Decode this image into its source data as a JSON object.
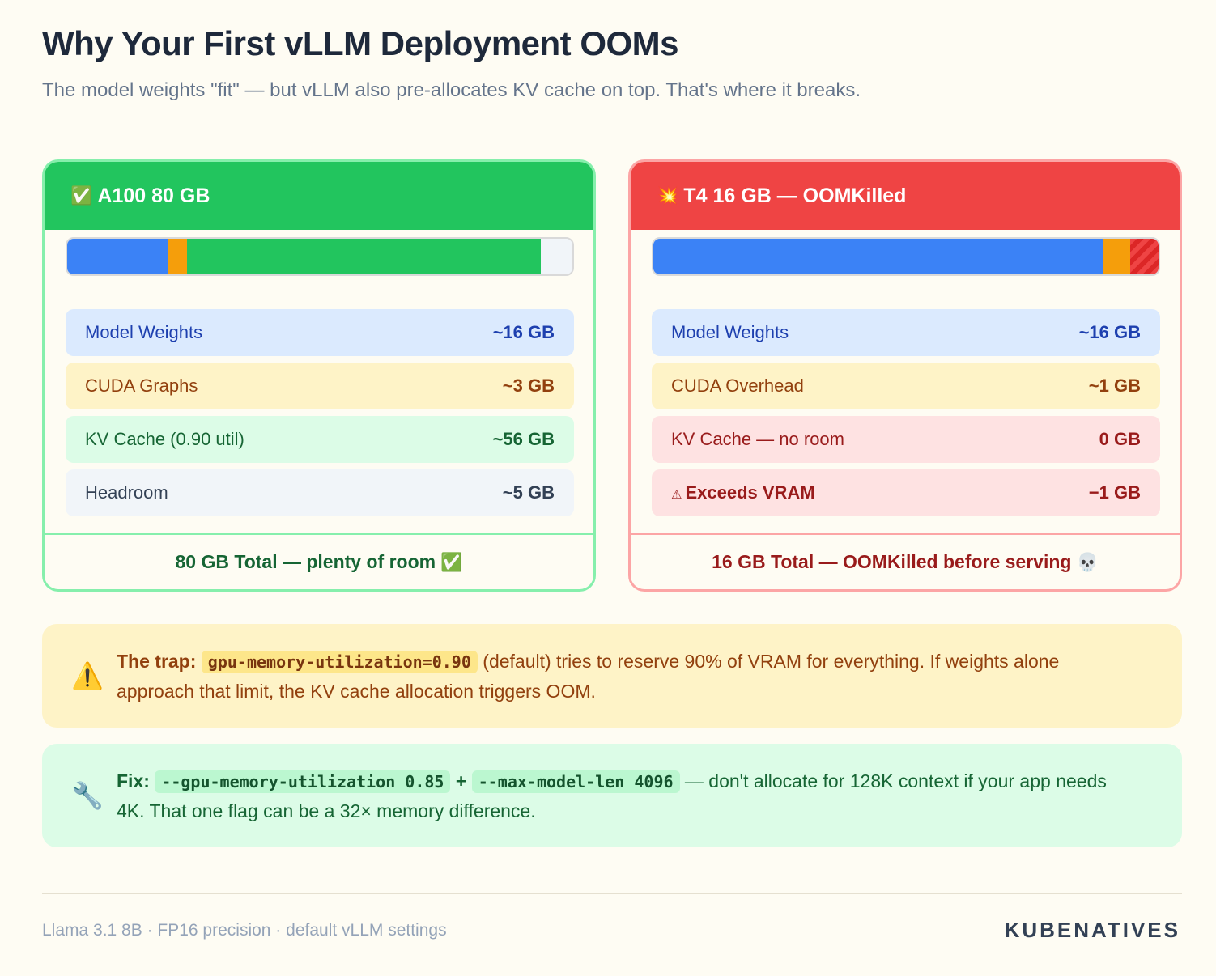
{
  "title": "Why Your First vLLM Deployment OOMs",
  "subtitle": "The model weights \"fit\" — but vLLM also pre-allocates KV cache on top. That's where it breaks.",
  "cards": {
    "ok": {
      "icon": "✅",
      "title": "A100 80 GB",
      "bar": [
        {
          "name": "Model Weights",
          "gb": 16,
          "color": "blue"
        },
        {
          "name": "CUDA Graphs",
          "gb": 3,
          "color": "orange"
        },
        {
          "name": "KV Cache",
          "gb": 56,
          "color": "green"
        },
        {
          "name": "Headroom",
          "gb": 5,
          "color": "gray"
        }
      ],
      "rows": [
        {
          "label": "Model Weights",
          "value": "~16 GB"
        },
        {
          "label": "CUDA Graphs",
          "value": "~3 GB"
        },
        {
          "label": "KV Cache (0.90 util)",
          "value": "~56 GB"
        },
        {
          "label": "Headroom",
          "value": "~5 GB"
        }
      ],
      "footer": "80 GB Total — plenty of room",
      "footer_icon": "✅"
    },
    "bad": {
      "icon": "💥",
      "title": "T4 16 GB — OOMKilled",
      "bar": [
        {
          "name": "Model Weights",
          "gb": 16,
          "color": "blue"
        },
        {
          "name": "CUDA Overhead",
          "gb": 1,
          "color": "orange"
        },
        {
          "name": "Exceeds VRAM",
          "gb": 1,
          "color": "hatch"
        }
      ],
      "rows": [
        {
          "label": "Model Weights",
          "value": "~16 GB"
        },
        {
          "label": "CUDA Overhead",
          "value": "~1 GB"
        },
        {
          "label": "KV Cache — no room",
          "value": "0 GB"
        },
        {
          "label": "Exceeds VRAM",
          "value": "−1 GB",
          "icon": "⚠"
        }
      ],
      "footer": "16 GB Total — OOMKilled before serving",
      "footer_icon": "💀"
    }
  },
  "trap": {
    "icon": "⚠️",
    "lead": "The trap:",
    "code": "gpu-memory-utilization=0.90",
    "text": "(default) tries to reserve 90% of VRAM for everything. If weights alone approach that limit, the KV cache allocation triggers OOM."
  },
  "fix": {
    "icon": "🔧",
    "lead": "Fix:",
    "code1": "--gpu-memory-utilization 0.85",
    "plus": "+",
    "code2": "--max-model-len 4096",
    "text": "— don't allocate for 128K context if your app needs 4K. That one flag can be a 32× memory difference."
  },
  "footer": {
    "left": "Llama 3.1 8B · FP16 precision · default vLLM settings",
    "brand": "KUBENATIVES"
  }
}
